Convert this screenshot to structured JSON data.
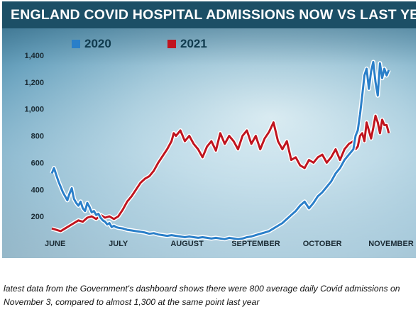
{
  "title": "ENGLAND COVID HOSPITAL ADMISSIONS NOW VS LAST YEAR",
  "caption": "latest data from the Government's dashboard shows there were 800 average daily Covid admissions on November 3, compared to almost 1,300 at the same point last year",
  "colors": {
    "2020": "#2a7fc9",
    "2021": "#c0141e",
    "title_bg": "#1c4f66"
  },
  "chart_data": {
    "type": "line",
    "xlabel": "",
    "ylabel": "",
    "ylim": [
      0,
      1450
    ],
    "yticks": [
      200,
      400,
      600,
      800,
      1000,
      1200,
      1400
    ],
    "ytick_labels": [
      "200",
      "400",
      "600",
      "800",
      "1,000",
      "1,200",
      "1,400"
    ],
    "xtick_labels": [
      "JUNE",
      "JULY",
      "AUGUST",
      "SEPTEMBER",
      "OCTOBER",
      "NOVEMBER"
    ],
    "x_unit": "day index from June 1",
    "xtick_positions": [
      0,
      30,
      61,
      92,
      122,
      153
    ],
    "grid": false,
    "legend_position": "top-left",
    "series": [
      {
        "name": "2020",
        "color": "#2a7fc9",
        "points": [
          [
            0,
            520
          ],
          [
            1,
            560
          ],
          [
            2,
            510
          ],
          [
            3,
            460
          ],
          [
            4,
            420
          ],
          [
            5,
            380
          ],
          [
            6,
            350
          ],
          [
            7,
            320
          ],
          [
            8,
            370
          ],
          [
            9,
            410
          ],
          [
            10,
            330
          ],
          [
            11,
            300
          ],
          [
            12,
            280
          ],
          [
            13,
            310
          ],
          [
            14,
            260
          ],
          [
            15,
            240
          ],
          [
            16,
            300
          ],
          [
            17,
            270
          ],
          [
            18,
            230
          ],
          [
            19,
            240
          ],
          [
            20,
            210
          ],
          [
            21,
            220
          ],
          [
            22,
            190
          ],
          [
            23,
            170
          ],
          [
            24,
            160
          ],
          [
            25,
            140
          ],
          [
            26,
            150
          ],
          [
            27,
            120
          ],
          [
            28,
            130
          ],
          [
            29,
            120
          ],
          [
            30,
            115
          ],
          [
            32,
            110
          ],
          [
            34,
            100
          ],
          [
            36,
            95
          ],
          [
            38,
            90
          ],
          [
            40,
            85
          ],
          [
            42,
            80
          ],
          [
            44,
            70
          ],
          [
            46,
            75
          ],
          [
            48,
            65
          ],
          [
            50,
            60
          ],
          [
            52,
            55
          ],
          [
            54,
            60
          ],
          [
            56,
            55
          ],
          [
            58,
            50
          ],
          [
            60,
            45
          ],
          [
            62,
            50
          ],
          [
            64,
            45
          ],
          [
            66,
            40
          ],
          [
            68,
            45
          ],
          [
            70,
            40
          ],
          [
            72,
            35
          ],
          [
            74,
            40
          ],
          [
            76,
            35
          ],
          [
            78,
            30
          ],
          [
            80,
            40
          ],
          [
            82,
            35
          ],
          [
            84,
            30
          ],
          [
            86,
            35
          ],
          [
            88,
            45
          ],
          [
            90,
            50
          ],
          [
            92,
            60
          ],
          [
            94,
            70
          ],
          [
            96,
            80
          ],
          [
            98,
            90
          ],
          [
            100,
            110
          ],
          [
            102,
            130
          ],
          [
            104,
            150
          ],
          [
            106,
            180
          ],
          [
            108,
            210
          ],
          [
            110,
            240
          ],
          [
            112,
            280
          ],
          [
            114,
            310
          ],
          [
            116,
            260
          ],
          [
            118,
            300
          ],
          [
            120,
            350
          ],
          [
            122,
            380
          ],
          [
            124,
            420
          ],
          [
            126,
            460
          ],
          [
            128,
            520
          ],
          [
            130,
            560
          ],
          [
            132,
            620
          ],
          [
            134,
            660
          ],
          [
            136,
            700
          ],
          [
            137,
            800
          ],
          [
            138,
            840
          ],
          [
            139,
            960
          ],
          [
            140,
            1100
          ],
          [
            141,
            1250
          ],
          [
            142,
            1300
          ],
          [
            143,
            1150
          ],
          [
            144,
            1280
          ],
          [
            145,
            1350
          ],
          [
            146,
            1200
          ],
          [
            147,
            1100
          ],
          [
            148,
            1340
          ],
          [
            149,
            1230
          ],
          [
            150,
            1300
          ],
          [
            151,
            1250
          ],
          [
            152,
            1290
          ]
        ]
      },
      {
        "name": "2021",
        "color": "#c0141e",
        "points": [
          [
            0,
            110
          ],
          [
            2,
            100
          ],
          [
            4,
            90
          ],
          [
            6,
            110
          ],
          [
            8,
            130
          ],
          [
            10,
            150
          ],
          [
            12,
            170
          ],
          [
            14,
            160
          ],
          [
            16,
            190
          ],
          [
            18,
            200
          ],
          [
            20,
            180
          ],
          [
            22,
            210
          ],
          [
            24,
            190
          ],
          [
            26,
            200
          ],
          [
            28,
            180
          ],
          [
            30,
            200
          ],
          [
            32,
            250
          ],
          [
            34,
            310
          ],
          [
            36,
            350
          ],
          [
            38,
            400
          ],
          [
            40,
            450
          ],
          [
            42,
            480
          ],
          [
            44,
            500
          ],
          [
            46,
            540
          ],
          [
            48,
            600
          ],
          [
            50,
            650
          ],
          [
            52,
            700
          ],
          [
            54,
            760
          ],
          [
            55,
            820
          ],
          [
            56,
            800
          ],
          [
            58,
            840
          ],
          [
            60,
            760
          ],
          [
            62,
            800
          ],
          [
            64,
            740
          ],
          [
            66,
            700
          ],
          [
            68,
            640
          ],
          [
            70,
            720
          ],
          [
            72,
            760
          ],
          [
            74,
            690
          ],
          [
            76,
            820
          ],
          [
            78,
            740
          ],
          [
            80,
            800
          ],
          [
            82,
            760
          ],
          [
            84,
            700
          ],
          [
            86,
            800
          ],
          [
            88,
            840
          ],
          [
            90,
            740
          ],
          [
            92,
            800
          ],
          [
            94,
            700
          ],
          [
            96,
            780
          ],
          [
            98,
            830
          ],
          [
            100,
            900
          ],
          [
            102,
            760
          ],
          [
            104,
            700
          ],
          [
            106,
            760
          ],
          [
            108,
            620
          ],
          [
            110,
            640
          ],
          [
            112,
            580
          ],
          [
            114,
            560
          ],
          [
            116,
            620
          ],
          [
            118,
            600
          ],
          [
            120,
            640
          ],
          [
            122,
            660
          ],
          [
            124,
            600
          ],
          [
            126,
            640
          ],
          [
            128,
            700
          ],
          [
            130,
            620
          ],
          [
            132,
            700
          ],
          [
            134,
            740
          ],
          [
            136,
            760
          ],
          [
            137,
            700
          ],
          [
            138,
            720
          ],
          [
            139,
            800
          ],
          [
            140,
            820
          ],
          [
            141,
            760
          ],
          [
            142,
            900
          ],
          [
            143,
            840
          ],
          [
            144,
            780
          ],
          [
            145,
            860
          ],
          [
            146,
            950
          ],
          [
            147,
            900
          ],
          [
            148,
            820
          ],
          [
            149,
            920
          ],
          [
            150,
            880
          ],
          [
            151,
            880
          ],
          [
            152,
            820
          ]
        ]
      }
    ]
  }
}
